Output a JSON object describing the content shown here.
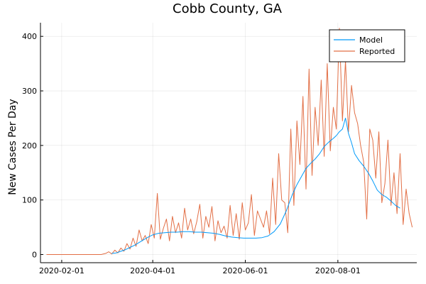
{
  "chart_data": {
    "type": "line",
    "title": "Cobb County, GA",
    "xlabel": "",
    "ylabel": "New Cases Per Day",
    "xlim": [
      "2020-01-18",
      "2020-09-22"
    ],
    "ylim": [
      -15,
      425
    ],
    "x_ticks": [
      "2020-02-01",
      "2020-04-01",
      "2020-06-01",
      "2020-08-01"
    ],
    "y_ticks": [
      0,
      100,
      200,
      300,
      400
    ],
    "grid": true,
    "legend_position": "top-right",
    "series": [
      {
        "name": "Model",
        "color": "#009AFA",
        "x": [
          "2020-03-05",
          "2020-03-08",
          "2020-03-11",
          "2020-03-14",
          "2020-03-17",
          "2020-03-20",
          "2020-03-23",
          "2020-03-26",
          "2020-03-29",
          "2020-04-01",
          "2020-04-05",
          "2020-04-09",
          "2020-04-13",
          "2020-04-17",
          "2020-04-21",
          "2020-04-25",
          "2020-04-29",
          "2020-05-03",
          "2020-05-07",
          "2020-05-11",
          "2020-05-15",
          "2020-05-19",
          "2020-05-23",
          "2020-05-27",
          "2020-05-31",
          "2020-06-04",
          "2020-06-08",
          "2020-06-12",
          "2020-06-16",
          "2020-06-20",
          "2020-06-24",
          "2020-06-28",
          "2020-07-02",
          "2020-07-05",
          "2020-07-08",
          "2020-07-11",
          "2020-07-14",
          "2020-07-17",
          "2020-07-20",
          "2020-07-23",
          "2020-07-26",
          "2020-07-29",
          "2020-07-31",
          "2020-08-02",
          "2020-08-04",
          "2020-08-06",
          "2020-08-08",
          "2020-08-10",
          "2020-08-12",
          "2020-08-15",
          "2020-08-18",
          "2020-08-21",
          "2020-08-24",
          "2020-08-27",
          "2020-08-30",
          "2020-09-02",
          "2020-09-05",
          "2020-09-08",
          "2020-09-11"
        ],
        "y": [
          2,
          3,
          6,
          9,
          13,
          17,
          22,
          27,
          32,
          36,
          39,
          40,
          41,
          41,
          42,
          42,
          41,
          41,
          40,
          39,
          37,
          34,
          32,
          31,
          30,
          30,
          30,
          31,
          34,
          42,
          56,
          80,
          110,
          128,
          143,
          158,
          167,
          175,
          185,
          198,
          206,
          213,
          218,
          225,
          230,
          250,
          222,
          205,
          185,
          172,
          162,
          150,
          135,
          118,
          110,
          105,
          98,
          90,
          85
        ]
      },
      {
        "name": "Reported",
        "color": "#E26F46",
        "x": [
          "2020-01-22",
          "2020-01-28",
          "2020-02-03",
          "2020-02-09",
          "2020-02-15",
          "2020-02-21",
          "2020-02-27",
          "2020-03-01",
          "2020-03-03",
          "2020-03-05",
          "2020-03-07",
          "2020-03-09",
          "2020-03-11",
          "2020-03-13",
          "2020-03-15",
          "2020-03-17",
          "2020-03-19",
          "2020-03-21",
          "2020-03-23",
          "2020-03-25",
          "2020-03-27",
          "2020-03-29",
          "2020-03-31",
          "2020-04-02",
          "2020-04-04",
          "2020-04-06",
          "2020-04-08",
          "2020-04-10",
          "2020-04-12",
          "2020-04-14",
          "2020-04-16",
          "2020-04-18",
          "2020-04-20",
          "2020-04-22",
          "2020-04-24",
          "2020-04-26",
          "2020-04-28",
          "2020-04-30",
          "2020-05-02",
          "2020-05-04",
          "2020-05-06",
          "2020-05-08",
          "2020-05-10",
          "2020-05-12",
          "2020-05-14",
          "2020-05-16",
          "2020-05-18",
          "2020-05-20",
          "2020-05-22",
          "2020-05-24",
          "2020-05-26",
          "2020-05-28",
          "2020-05-30",
          "2020-06-01",
          "2020-06-03",
          "2020-06-05",
          "2020-06-07",
          "2020-06-09",
          "2020-06-11",
          "2020-06-13",
          "2020-06-15",
          "2020-06-17",
          "2020-06-19",
          "2020-06-21",
          "2020-06-23",
          "2020-06-25",
          "2020-06-27",
          "2020-06-29",
          "2020-07-01",
          "2020-07-03",
          "2020-07-05",
          "2020-07-07",
          "2020-07-09",
          "2020-07-11",
          "2020-07-13",
          "2020-07-15",
          "2020-07-17",
          "2020-07-19",
          "2020-07-21",
          "2020-07-23",
          "2020-07-25",
          "2020-07-27",
          "2020-07-29",
          "2020-07-31",
          "2020-08-02",
          "2020-08-04",
          "2020-08-06",
          "2020-08-08",
          "2020-08-10",
          "2020-08-12",
          "2020-08-14",
          "2020-08-16",
          "2020-08-18",
          "2020-08-20",
          "2020-08-22",
          "2020-08-24",
          "2020-08-26",
          "2020-08-28",
          "2020-08-30",
          "2020-09-01",
          "2020-09-03",
          "2020-09-05",
          "2020-09-07",
          "2020-09-09",
          "2020-09-11",
          "2020-09-13",
          "2020-09-15",
          "2020-09-17",
          "2020-09-19"
        ],
        "y": [
          0,
          0,
          0,
          0,
          0,
          0,
          0,
          2,
          5,
          1,
          8,
          3,
          12,
          6,
          20,
          10,
          30,
          15,
          45,
          25,
          35,
          20,
          55,
          30,
          112,
          28,
          48,
          65,
          25,
          70,
          40,
          58,
          30,
          85,
          45,
          65,
          38,
          60,
          92,
          30,
          70,
          50,
          88,
          25,
          62,
          40,
          52,
          30,
          90,
          35,
          75,
          28,
          95,
          45,
          58,
          110,
          35,
          80,
          65,
          50,
          80,
          38,
          140,
          55,
          185,
          100,
          95,
          40,
          230,
          90,
          245,
          165,
          290,
          120,
          340,
          145,
          270,
          200,
          320,
          180,
          350,
          190,
          270,
          230,
          415,
          245,
          355,
          225,
          310,
          260,
          240,
          200,
          170,
          65,
          230,
          210,
          140,
          225,
          95,
          130,
          210,
          90,
          150,
          75,
          185,
          55,
          120,
          75,
          50
        ]
      }
    ]
  }
}
